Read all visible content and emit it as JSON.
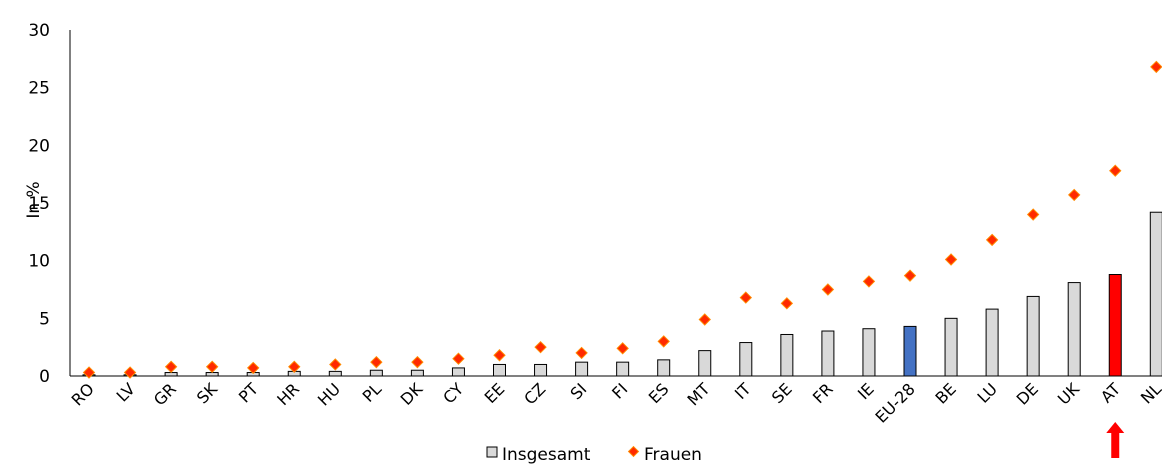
{
  "chart_data": {
    "type": "bar",
    "categories": [
      "RO",
      "LV",
      "GR",
      "SK",
      "PT",
      "HR",
      "HU",
      "PL",
      "DK",
      "CY",
      "EE",
      "CZ",
      "SI",
      "FI",
      "ES",
      "MT",
      "IT",
      "SE",
      "FR",
      "IE",
      "EU-28",
      "BE",
      "LU",
      "DE",
      "UK",
      "AT",
      "NL"
    ],
    "series": [
      {
        "name": "Insgesamt",
        "kind": "bar",
        "color": "#d9d9d9",
        "values": [
          0.1,
          0.1,
          0.3,
          0.3,
          0.3,
          0.4,
          0.4,
          0.5,
          0.5,
          0.7,
          1.0,
          1.0,
          1.2,
          1.2,
          1.4,
          2.2,
          2.9,
          3.6,
          3.9,
          4.1,
          4.3,
          5.0,
          5.8,
          6.9,
          8.1,
          8.8,
          14.2
        ]
      },
      {
        "name": "Frauen",
        "kind": "marker",
        "color": "#ff2a00",
        "values": [
          0.3,
          0.3,
          0.8,
          0.8,
          0.7,
          0.8,
          1.0,
          1.2,
          1.2,
          1.5,
          1.8,
          2.5,
          2.0,
          2.4,
          3.0,
          4.9,
          6.8,
          6.3,
          7.5,
          8.2,
          8.7,
          10.1,
          11.8,
          14.0,
          15.7,
          17.8,
          26.8
        ]
      }
    ],
    "highlights": {
      "EU-28": "#4472c4",
      "AT": "#ff0000"
    },
    "arrow_under": "AT",
    "arrow_color": "#ff0000",
    "ylabel": "In %",
    "ylim": [
      0,
      30
    ],
    "yticks": [
      0,
      5,
      10,
      15,
      20,
      25,
      30
    ],
    "grid": false,
    "legend_position": "bottom"
  }
}
